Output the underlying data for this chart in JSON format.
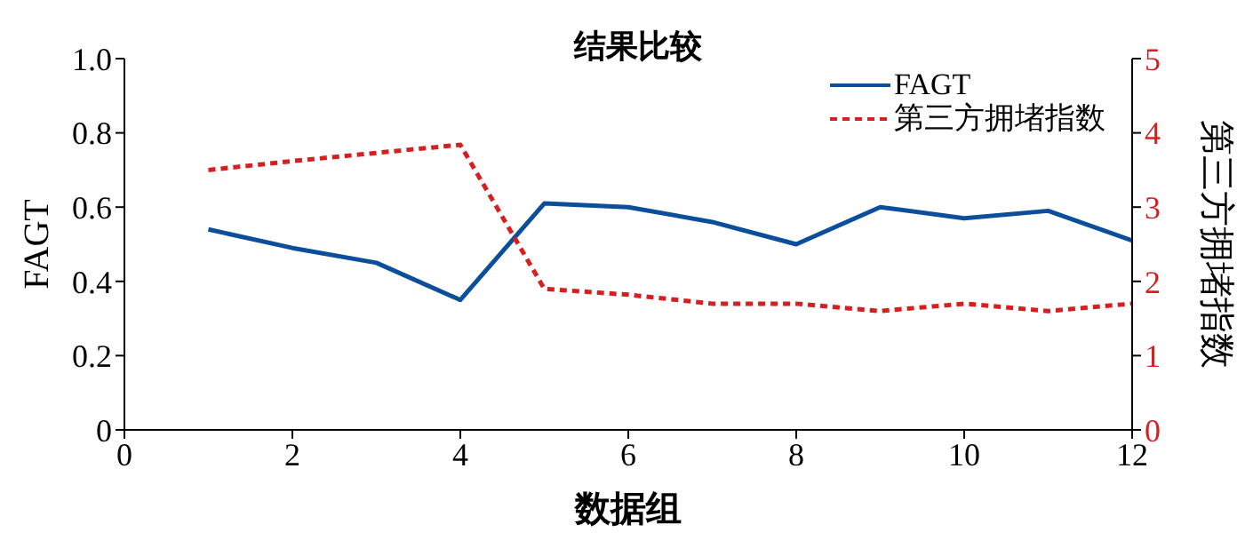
{
  "chart_data": {
    "type": "line",
    "title": "结果比较",
    "xlabel": "数据组",
    "ylabel": "FAGT",
    "y2label": "第三方拥堵指数",
    "x": [
      1,
      2,
      3,
      4,
      5,
      6,
      7,
      8,
      9,
      10,
      11,
      12
    ],
    "series": [
      {
        "name": "FAGT",
        "color": "#0b4f9c",
        "line_style": "solid",
        "values": [
          0.54,
          0.49,
          0.45,
          0.35,
          0.61,
          0.6,
          0.56,
          0.5,
          0.6,
          0.57,
          0.59,
          0.51
        ]
      },
      {
        "name": "第三方拥堵指数",
        "color": "#d42020",
        "line_style": "dashed",
        "axis": "y2",
        "values": [
          3.5,
          3.62,
          3.73,
          3.84,
          1.9,
          1.82,
          1.7,
          1.7,
          1.6,
          1.7,
          1.6,
          1.7
        ]
      }
    ],
    "xlim": [
      0,
      12
    ],
    "xticks": [
      0,
      2,
      4,
      6,
      8,
      10,
      12
    ],
    "ylim": [
      0,
      1
    ],
    "yticks": [
      0,
      0.2,
      0.4,
      0.6,
      0.8,
      {
        "value": 1,
        "label": "1.0"
      }
    ],
    "y2lim": [
      0,
      5
    ],
    "y2ticks": [
      0,
      1,
      2,
      3,
      4,
      5
    ],
    "legend": "top right",
    "grid": false
  }
}
